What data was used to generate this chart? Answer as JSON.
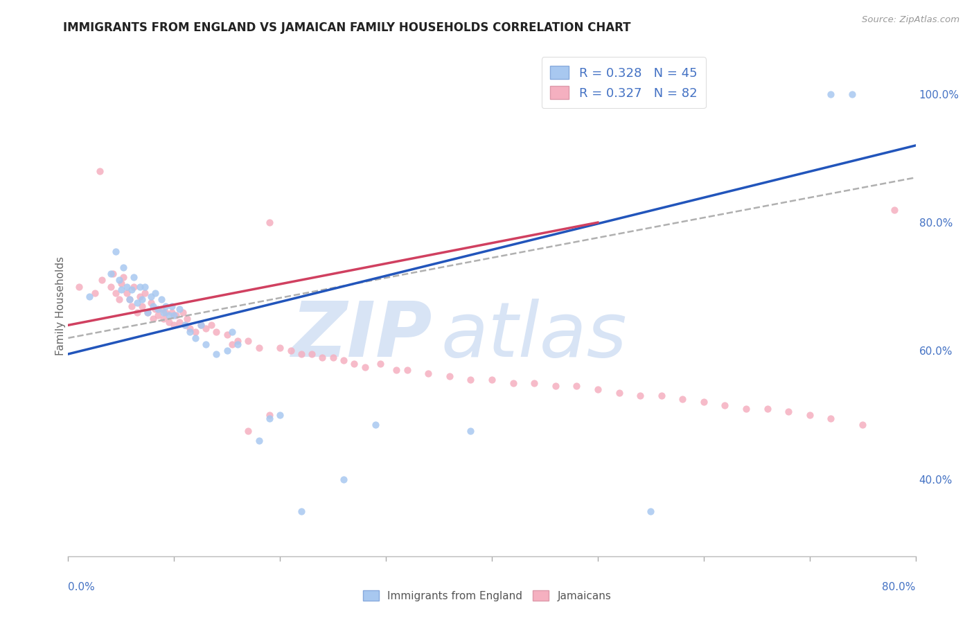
{
  "title": "IMMIGRANTS FROM ENGLAND VS JAMAICAN FAMILY HOUSEHOLDS CORRELATION CHART",
  "source_text": "Source: ZipAtlas.com",
  "ylabel": "Family Households",
  "x_min": 0.0,
  "x_max": 0.8,
  "y_min": 0.28,
  "y_max": 1.06,
  "y_ticks_right": [
    0.4,
    0.6,
    0.8,
    1.0
  ],
  "y_tick_labels_right": [
    "40.0%",
    "60.0%",
    "80.0%",
    "100.0%"
  ],
  "legend_r1": "R = 0.328",
  "legend_n1": "N = 45",
  "legend_r2": "R = 0.327",
  "legend_n2": "N = 82",
  "color_blue": "#a8c8f0",
  "color_blue_line": "#2255bb",
  "color_pink": "#f5b0c0",
  "color_pink_line": "#d04060",
  "color_gray_dash": "#b0b0b0",
  "color_text_blue": "#4472c4",
  "watermark_color": "#d8e4f5",
  "background_color": "#ffffff",
  "grid_color": "#dddddd",
  "blue_x": [
    0.02,
    0.04,
    0.045,
    0.05,
    0.048,
    0.052,
    0.055,
    0.058,
    0.06,
    0.062,
    0.065,
    0.068,
    0.07,
    0.072,
    0.075,
    0.078,
    0.08,
    0.082,
    0.085,
    0.088,
    0.09,
    0.092,
    0.095,
    0.098,
    0.1,
    0.105,
    0.11,
    0.115,
    0.12,
    0.125,
    0.13,
    0.14,
    0.15,
    0.155,
    0.16,
    0.18,
    0.19,
    0.2,
    0.22,
    0.26,
    0.29,
    0.38,
    0.55,
    0.72,
    0.74
  ],
  "blue_y": [
    0.685,
    0.72,
    0.755,
    0.695,
    0.71,
    0.73,
    0.7,
    0.68,
    0.695,
    0.715,
    0.675,
    0.7,
    0.68,
    0.7,
    0.66,
    0.685,
    0.67,
    0.69,
    0.665,
    0.68,
    0.66,
    0.67,
    0.655,
    0.67,
    0.655,
    0.665,
    0.64,
    0.63,
    0.62,
    0.64,
    0.61,
    0.595,
    0.6,
    0.63,
    0.61,
    0.46,
    0.495,
    0.5,
    0.35,
    0.4,
    0.485,
    0.475,
    0.35,
    1.0,
    1.0
  ],
  "pink_x": [
    0.01,
    0.025,
    0.03,
    0.032,
    0.04,
    0.042,
    0.045,
    0.048,
    0.05,
    0.052,
    0.055,
    0.058,
    0.06,
    0.062,
    0.065,
    0.068,
    0.07,
    0.072,
    0.075,
    0.078,
    0.08,
    0.082,
    0.085,
    0.088,
    0.09,
    0.092,
    0.095,
    0.098,
    0.1,
    0.102,
    0.105,
    0.108,
    0.11,
    0.112,
    0.115,
    0.12,
    0.125,
    0.13,
    0.135,
    0.14,
    0.15,
    0.155,
    0.16,
    0.17,
    0.18,
    0.19,
    0.2,
    0.21,
    0.22,
    0.23,
    0.24,
    0.25,
    0.26,
    0.27,
    0.28,
    0.295,
    0.31,
    0.32,
    0.34,
    0.36,
    0.38,
    0.4,
    0.42,
    0.44,
    0.46,
    0.48,
    0.5,
    0.52,
    0.54,
    0.56,
    0.58,
    0.6,
    0.62,
    0.64,
    0.66,
    0.68,
    0.7,
    0.72,
    0.75,
    0.78,
    0.17,
    0.19
  ],
  "pink_y": [
    0.7,
    0.69,
    0.88,
    0.71,
    0.7,
    0.72,
    0.69,
    0.68,
    0.705,
    0.715,
    0.69,
    0.68,
    0.67,
    0.7,
    0.66,
    0.685,
    0.67,
    0.69,
    0.66,
    0.675,
    0.65,
    0.665,
    0.655,
    0.665,
    0.65,
    0.66,
    0.645,
    0.66,
    0.64,
    0.655,
    0.645,
    0.66,
    0.64,
    0.65,
    0.635,
    0.63,
    0.64,
    0.635,
    0.64,
    0.63,
    0.625,
    0.61,
    0.615,
    0.615,
    0.605,
    0.8,
    0.605,
    0.6,
    0.595,
    0.595,
    0.59,
    0.59,
    0.585,
    0.58,
    0.575,
    0.58,
    0.57,
    0.57,
    0.565,
    0.56,
    0.555,
    0.555,
    0.55,
    0.55,
    0.545,
    0.545,
    0.54,
    0.535,
    0.53,
    0.53,
    0.525,
    0.52,
    0.515,
    0.51,
    0.51,
    0.505,
    0.5,
    0.495,
    0.485,
    0.82,
    0.475,
    0.5
  ],
  "blue_trend_x": [
    0.0,
    0.8
  ],
  "blue_trend_y": [
    0.595,
    0.92
  ],
  "pink_trend_x": [
    0.0,
    0.5
  ],
  "pink_trend_y": [
    0.64,
    0.8
  ],
  "gray_trend_x": [
    0.0,
    0.8
  ],
  "gray_trend_y": [
    0.62,
    0.87
  ]
}
